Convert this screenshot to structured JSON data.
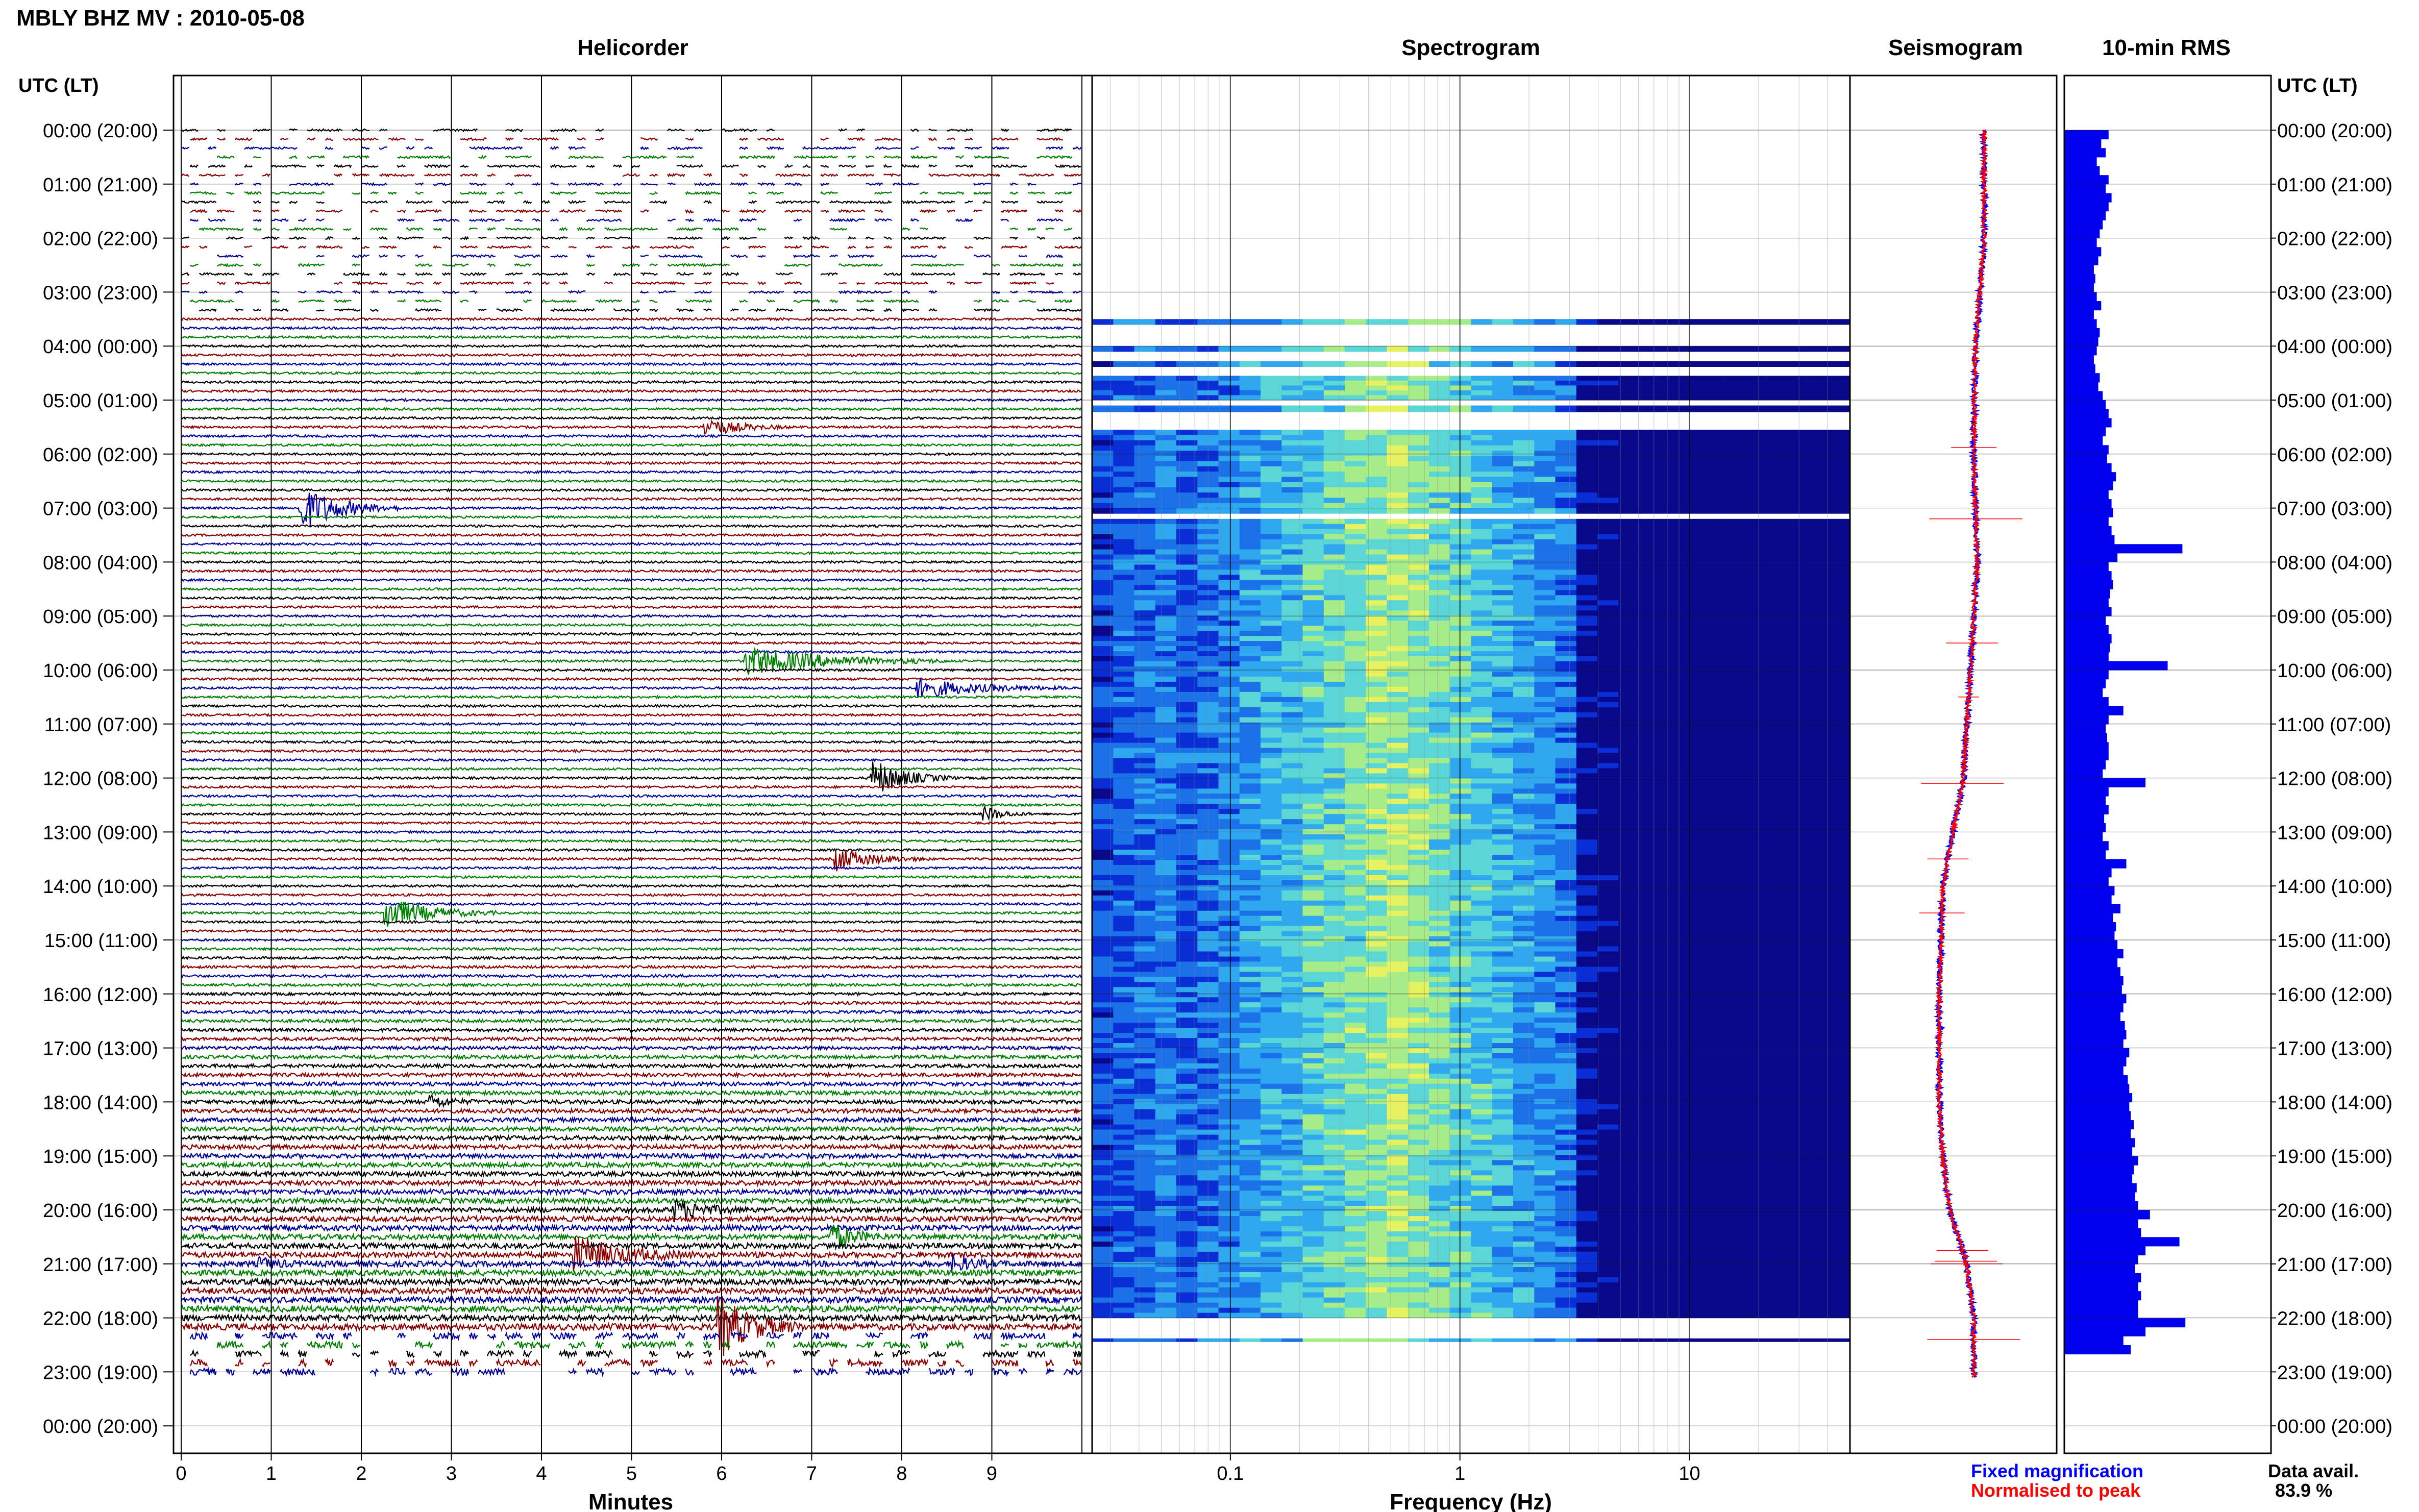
{
  "page": {
    "title": "MBLY BHZ MV : 2010-05-08",
    "left_axis_header": "UTC (LT)",
    "right_axis_header": "UTC (LT)",
    "data_avail_label": "Data avail.",
    "data_avail_value": "83.9 %"
  },
  "colors": {
    "trace_cycle": [
      "#000000",
      "#8b0000",
      "#0000a0",
      "#008000"
    ],
    "rms_bar": "#0000ee",
    "fixed": "#0000ff",
    "normalised": "#ff0000",
    "frame": "#000000",
    "grid": "#000000"
  },
  "chart_data": [
    {
      "type": "line",
      "panel": "helicorder",
      "title": "Helicorder",
      "xlabel": "Minutes",
      "ylabel": "UTC (LT)",
      "xlim": [
        0,
        10
      ],
      "xticks": [
        "0",
        "1",
        "2",
        "3",
        "4",
        "5",
        "6",
        "7",
        "8",
        "9"
      ],
      "yticks": [
        "00:00 (20:00)",
        "01:00 (21:00)",
        "02:00 (22:00)",
        "03:00 (23:00)",
        "04:00 (00:00)",
        "05:00 (01:00)",
        "06:00 (02:00)",
        "07:00 (03:00)",
        "08:00 (04:00)",
        "09:00 (05:00)",
        "10:00 (06:00)",
        "11:00 (07:00)",
        "12:00 (08:00)",
        "13:00 (09:00)",
        "14:00 (10:00)",
        "15:00 (11:00)",
        "16:00 (12:00)",
        "17:00 (13:00)",
        "18:00 (14:00)",
        "19:00 (15:00)",
        "20:00 (16:00)",
        "21:00 (17:00)",
        "22:00 (18:00)",
        "23:00 (19:00)",
        "00:00 (20:00)"
      ],
      "rows_per_hour": 6,
      "data_start_hour": 0,
      "data_end_hour": 23.17,
      "gappy_hours": [
        [
          0,
          3.5
        ],
        [
          22.17,
          23.17
        ]
      ],
      "events": [
        {
          "hour": 1.5,
          "minute": 5.6,
          "amp": 0.02,
          "dur": 0.6
        },
        {
          "hour": 5.5,
          "minute": 5.85,
          "amp": 0.28,
          "dur": 0.9
        },
        {
          "hour": 7.0,
          "minute": 1.35,
          "amp": 0.7,
          "dur": 1.1
        },
        {
          "hour": 9.83,
          "minute": 6.3,
          "amp": 0.45,
          "dur": 2.2
        },
        {
          "hour": 10.33,
          "minute": 8.2,
          "amp": 0.3,
          "dur": 1.7
        },
        {
          "hour": 12.0,
          "minute": 7.7,
          "amp": 0.55,
          "dur": 0.9
        },
        {
          "hour": 12.67,
          "minute": 8.95,
          "amp": 0.2,
          "dur": 0.5
        },
        {
          "hour": 13.5,
          "minute": 7.3,
          "amp": 0.35,
          "dur": 1.0
        },
        {
          "hour": 14.5,
          "minute": 2.3,
          "amp": 0.5,
          "dur": 1.2
        },
        {
          "hour": 18.0,
          "minute": 2.8,
          "amp": 0.18,
          "dur": 0.5
        },
        {
          "hour": 20.0,
          "minute": 5.5,
          "amp": 0.32,
          "dur": 0.8
        },
        {
          "hour": 20.5,
          "minute": 7.25,
          "amp": 0.4,
          "dur": 0.6
        },
        {
          "hour": 20.83,
          "minute": 4.4,
          "amp": 0.55,
          "dur": 1.3
        },
        {
          "hour": 21.0,
          "minute": 0.9,
          "amp": 0.15,
          "dur": 0.5
        },
        {
          "hour": 21.0,
          "minute": 8.6,
          "amp": 0.2,
          "dur": 0.6
        },
        {
          "hour": 22.17,
          "minute": 6.0,
          "amp": 0.9,
          "dur": 0.9
        }
      ]
    },
    {
      "type": "heatmap",
      "panel": "spectrogram",
      "title": "Spectrogram",
      "xlabel": "Frequency (Hz)",
      "xscale": "log",
      "xlim": [
        0.025,
        50
      ],
      "xticks": [
        0.1,
        1,
        10
      ],
      "xtick_labels": [
        "0.1",
        "1",
        "10"
      ],
      "ylim_hours": [
        0,
        24
      ],
      "data_blocks_hours": [
        [
          3.5,
          3.6
        ],
        [
          4.0,
          4.1
        ],
        [
          4.28,
          4.38
        ],
        [
          4.55,
          5.0
        ],
        [
          5.1,
          5.22
        ],
        [
          5.55,
          7.1
        ],
        [
          7.2,
          22.0
        ],
        [
          22.38,
          22.44
        ]
      ],
      "colormap": [
        "#08088a",
        "#0a2ed6",
        "#1b72e8",
        "#2fa8f0",
        "#5ad6d6",
        "#a6ec88",
        "#e6f260"
      ],
      "peak_frequency_hz": 0.5
    },
    {
      "type": "line",
      "panel": "seismogram",
      "title": "Seismogram",
      "series": [
        {
          "name": "Fixed magnification",
          "color": "#0000ff"
        },
        {
          "name": "Normalised to peak",
          "color": "#ff0000"
        }
      ],
      "drift_profile": [
        [
          0,
          6
        ],
        [
          2,
          6
        ],
        [
          4,
          1
        ],
        [
          6,
          0
        ],
        [
          8,
          2
        ],
        [
          10,
          -2
        ],
        [
          12,
          -6
        ],
        [
          13,
          -12
        ],
        [
          14,
          -18
        ],
        [
          16,
          -20
        ],
        [
          18,
          -20
        ],
        [
          19,
          -18
        ],
        [
          20,
          -14
        ],
        [
          21,
          -4
        ],
        [
          22,
          0
        ],
        [
          23.1,
          0
        ]
      ],
      "xlim": [
        -60,
        60
      ],
      "ylim_hours": [
        0,
        24
      ],
      "spikes": [
        [
          5.88,
          22
        ],
        [
          7.2,
          45
        ],
        [
          9.5,
          25
        ],
        [
          10.5,
          10
        ],
        [
          12.1,
          40
        ],
        [
          13.5,
          20
        ],
        [
          14.5,
          22
        ],
        [
          20.75,
          25
        ],
        [
          20.95,
          30
        ],
        [
          21.0,
          35
        ],
        [
          22.4,
          45
        ]
      ]
    },
    {
      "type": "bar",
      "panel": "rms",
      "title": "10-min RMS",
      "orientation": "horizontal",
      "bin_hours": 0.1667,
      "start_hour": 0,
      "values": [
        0.3,
        0.25,
        0.28,
        0.22,
        0.24,
        0.3,
        0.28,
        0.32,
        0.3,
        0.28,
        0.26,
        0.24,
        0.22,
        0.25,
        0.23,
        0.2,
        0.21,
        0.2,
        0.22,
        0.25,
        0.2,
        0.22,
        0.24,
        0.23,
        0.22,
        0.2,
        0.21,
        0.24,
        0.23,
        0.26,
        0.28,
        0.3,
        0.32,
        0.28,
        0.26,
        0.3,
        0.29,
        0.32,
        0.35,
        0.33,
        0.3,
        0.32,
        0.33,
        0.3,
        0.32,
        0.34,
        0.8,
        0.36,
        0.3,
        0.32,
        0.33,
        0.31,
        0.3,
        0.32,
        0.28,
        0.3,
        0.32,
        0.31,
        0.3,
        0.7,
        0.3,
        0.28,
        0.26,
        0.3,
        0.4,
        0.3,
        0.28,
        0.29,
        0.3,
        0.3,
        0.28,
        0.26,
        0.55,
        0.3,
        0.28,
        0.3,
        0.27,
        0.28,
        0.26,
        0.3,
        0.28,
        0.42,
        0.32,
        0.3,
        0.34,
        0.32,
        0.38,
        0.33,
        0.35,
        0.34,
        0.36,
        0.4,
        0.36,
        0.38,
        0.4,
        0.39,
        0.42,
        0.4,
        0.38,
        0.41,
        0.42,
        0.4,
        0.44,
        0.42,
        0.4,
        0.43,
        0.44,
        0.46,
        0.44,
        0.45,
        0.47,
        0.45,
        0.48,
        0.46,
        0.5,
        0.47,
        0.46,
        0.49,
        0.48,
        0.5,
        0.58,
        0.5,
        0.52,
        0.78,
        0.55,
        0.5,
        0.48,
        0.52,
        0.5,
        0.52,
        0.5,
        0.5,
        0.82,
        0.55,
        0.4,
        0.45
      ],
      "xlim": [
        0,
        1.4
      ],
      "ylim_hours": [
        0,
        24
      ]
    }
  ]
}
